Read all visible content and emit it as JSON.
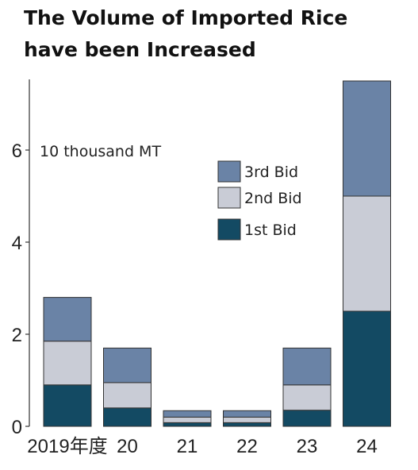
{
  "header": {
    "title_line1": "The Volume of Imported Rice",
    "title_line2": "have been Increased"
  },
  "chart_data": {
    "type": "bar",
    "stacked": true,
    "title": "The Volume of Imported Rice have been Increased",
    "unit": "10 thousand MT",
    "categories": [
      "2019年度",
      "20",
      "21",
      "22",
      "23",
      "24"
    ],
    "series": [
      {
        "name": "1st Bid",
        "color": "#134a63",
        "values": [
          0.9,
          0.4,
          0.08,
          0.08,
          0.35,
          2.5
        ]
      },
      {
        "name": "2nd Bid",
        "color": "#c9ccd6",
        "values": [
          0.95,
          0.55,
          0.12,
          0.12,
          0.55,
          2.5
        ]
      },
      {
        "name": "3rd Bid",
        "color": "#6a83a6",
        "values": [
          0.95,
          0.75,
          0.14,
          0.14,
          0.8,
          2.5
        ]
      }
    ],
    "y_ticks": [
      0,
      2,
      4,
      6
    ],
    "ylim": [
      0,
      7.4
    ],
    "legend_order": [
      "3rd Bid",
      "2nd Bid",
      "1st Bid"
    ],
    "legend_position": "top-center",
    "grid": false
  }
}
